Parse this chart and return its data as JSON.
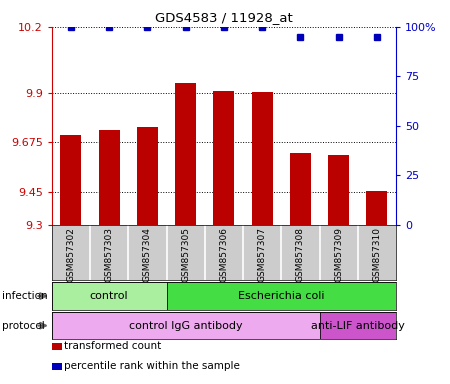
{
  "title": "GDS4583 / 11928_at",
  "samples": [
    "GSM857302",
    "GSM857303",
    "GSM857304",
    "GSM857305",
    "GSM857306",
    "GSM857307",
    "GSM857308",
    "GSM857309",
    "GSM857310"
  ],
  "bar_values": [
    9.71,
    9.73,
    9.745,
    9.945,
    9.91,
    9.905,
    9.625,
    9.615,
    9.455
  ],
  "percentile_values": [
    100,
    100,
    100,
    100,
    100,
    100,
    95,
    95,
    95
  ],
  "ylim_left": [
    9.3,
    10.2
  ],
  "ylim_right": [
    0,
    100
  ],
  "yticks_left": [
    9.3,
    9.45,
    9.675,
    9.9,
    10.2
  ],
  "ytick_labels_left": [
    "9.3",
    "9.45",
    "9.675",
    "9.9",
    "10.2"
  ],
  "yticks_right": [
    0,
    25,
    50,
    75,
    100
  ],
  "ytick_labels_right": [
    "0",
    "25",
    "50",
    "75",
    "100%"
  ],
  "bar_color": "#bb0000",
  "dot_color": "#0000bb",
  "infection_groups": [
    {
      "label": "control",
      "start": 0,
      "end": 3,
      "color": "#aaeea0"
    },
    {
      "label": "Escherichia coli",
      "start": 3,
      "end": 9,
      "color": "#44dd44"
    }
  ],
  "protocol_groups": [
    {
      "label": "control IgG antibody",
      "start": 0,
      "end": 7,
      "color": "#eeaaee"
    },
    {
      "label": "anti-LIF antibody",
      "start": 7,
      "end": 9,
      "color": "#cc55cc"
    }
  ],
  "infection_label": "infection",
  "protocol_label": "protocol",
  "legend_items": [
    {
      "color": "#bb0000",
      "label": "transformed count"
    },
    {
      "color": "#0000bb",
      "label": "percentile rank within the sample"
    }
  ],
  "background_color": "#ffffff",
  "bar_width": 0.55,
  "sample_box_color": "#cccccc",
  "sample_box_divider": "#ffffff"
}
